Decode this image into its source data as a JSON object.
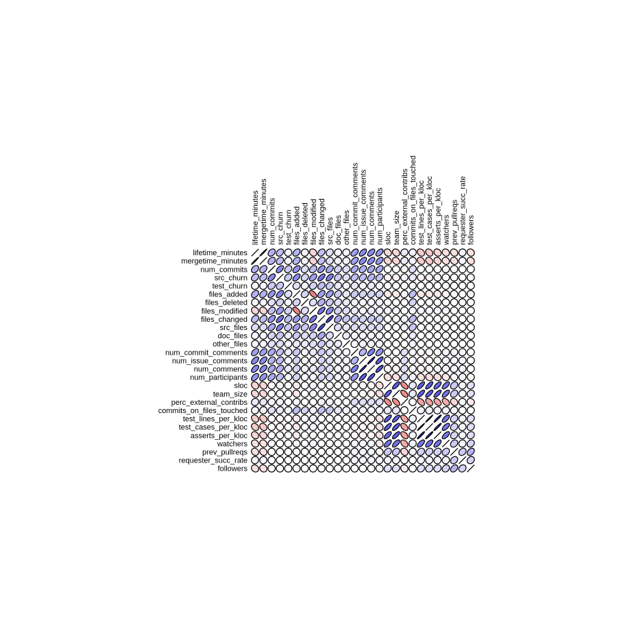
{
  "chart_data": {
    "type": "heatmap",
    "subtype": "correlation-ellipse-matrix",
    "title": "",
    "xlabel": "",
    "ylabel": "",
    "value_range": [
      -1,
      1
    ],
    "colors": {
      "positive": "#2a2ad8",
      "negative": "#e03030",
      "neutral": "#ffffff",
      "stroke": "#000000"
    },
    "variables": [
      "lifetime_minutes",
      "mergetime_minutes",
      "num_commits",
      "src_churn",
      "test_churn",
      "files_added",
      "files_deleted",
      "files_modified",
      "files_changed",
      "src_files",
      "doc_files",
      "other_files",
      "num_commit_comments",
      "num_issue_comments",
      "num_comments",
      "num_participants",
      "sloc",
      "team_size",
      "perc_external_contribs",
      "commits_on_files_touched",
      "test_lines_per_kloc",
      "test_cases_per_kloc",
      "asserts_per_kloc",
      "watchers",
      "prev_pullreqs",
      "requester_succ_rate",
      "followers"
    ],
    "matrix": [
      [
        1.0,
        0.98,
        0.35,
        0.3,
        0.05,
        0.35,
        0.05,
        -0.2,
        0.3,
        0.15,
        0.05,
        0.05,
        0.45,
        0.55,
        0.55,
        0.5,
        -0.2,
        -0.2,
        0.1,
        0.05,
        -0.25,
        -0.25,
        -0.2,
        -0.15,
        -0.15,
        0.05,
        -0.15
      ],
      [
        0.98,
        1.0,
        0.35,
        0.3,
        0.05,
        0.35,
        0.05,
        -0.2,
        0.3,
        0.15,
        0.05,
        0.05,
        0.45,
        0.55,
        0.55,
        0.5,
        -0.2,
        -0.2,
        0.1,
        0.05,
        -0.25,
        -0.25,
        -0.2,
        -0.15,
        -0.15,
        0.05,
        -0.15
      ],
      [
        0.35,
        0.35,
        1.0,
        0.55,
        0.25,
        0.5,
        0.15,
        0.3,
        0.5,
        0.4,
        0.2,
        0.15,
        0.4,
        0.35,
        0.4,
        0.4,
        0.0,
        0.0,
        0.05,
        0.15,
        0.0,
        0.0,
        0.0,
        0.05,
        0.0,
        0.0,
        0.0
      ],
      [
        0.3,
        0.3,
        0.55,
        1.0,
        0.25,
        0.55,
        0.2,
        0.45,
        0.65,
        0.6,
        0.25,
        0.15,
        0.3,
        0.3,
        0.35,
        0.3,
        -0.05,
        -0.05,
        0.05,
        0.1,
        -0.05,
        -0.05,
        -0.05,
        0.0,
        0.0,
        0.0,
        0.0
      ],
      [
        0.05,
        0.05,
        0.25,
        0.25,
        1.0,
        0.15,
        0.05,
        0.2,
        0.3,
        0.25,
        0.1,
        0.05,
        0.1,
        0.05,
        0.1,
        0.05,
        0.0,
        0.0,
        0.0,
        0.05,
        0.0,
        0.0,
        0.0,
        0.0,
        0.0,
        0.0,
        0.0
      ],
      [
        0.35,
        0.35,
        0.5,
        0.55,
        0.15,
        1.0,
        0.2,
        -0.6,
        0.45,
        0.45,
        0.25,
        0.1,
        0.25,
        0.2,
        0.2,
        0.2,
        -0.1,
        -0.1,
        0.05,
        0.3,
        -0.1,
        -0.1,
        -0.1,
        -0.05,
        -0.05,
        0.0,
        -0.05
      ],
      [
        0.05,
        0.05,
        0.15,
        0.2,
        0.05,
        0.2,
        1.0,
        0.15,
        0.35,
        0.25,
        0.15,
        0.1,
        0.05,
        0.05,
        0.05,
        0.05,
        0.0,
        0.0,
        0.0,
        0.2,
        0.0,
        0.0,
        0.0,
        0.0,
        0.0,
        0.0,
        0.0
      ],
      [
        -0.2,
        -0.2,
        0.3,
        0.45,
        0.2,
        -0.6,
        0.15,
        1.0,
        0.65,
        0.55,
        0.2,
        0.15,
        0.1,
        0.05,
        0.1,
        0.05,
        0.05,
        0.05,
        0.0,
        0.05,
        0.05,
        0.05,
        0.05,
        0.05,
        0.0,
        0.0,
        0.0
      ],
      [
        0.3,
        0.3,
        0.5,
        0.65,
        0.3,
        0.45,
        0.35,
        0.65,
        1.0,
        0.85,
        0.4,
        0.25,
        0.25,
        0.2,
        0.25,
        0.2,
        0.0,
        0.0,
        0.05,
        0.3,
        0.0,
        0.0,
        0.0,
        0.0,
        0.0,
        0.0,
        0.0
      ],
      [
        0.15,
        0.15,
        0.4,
        0.6,
        0.25,
        0.45,
        0.25,
        0.55,
        0.85,
        1.0,
        0.15,
        0.1,
        0.15,
        0.15,
        0.15,
        0.15,
        0.0,
        0.0,
        0.05,
        0.25,
        0.0,
        0.0,
        0.0,
        0.0,
        0.0,
        0.0,
        0.0
      ],
      [
        0.05,
        0.05,
        0.2,
        0.25,
        0.1,
        0.25,
        0.15,
        0.2,
        0.4,
        0.15,
        1.0,
        0.1,
        0.05,
        0.05,
        0.05,
        0.05,
        0.0,
        0.0,
        0.0,
        0.1,
        0.0,
        0.0,
        0.0,
        0.0,
        0.0,
        0.0,
        0.0
      ],
      [
        0.05,
        0.05,
        0.15,
        0.15,
        0.05,
        0.1,
        0.1,
        0.15,
        0.25,
        0.1,
        0.1,
        1.0,
        0.05,
        0.05,
        0.05,
        0.05,
        0.0,
        0.0,
        0.0,
        0.05,
        0.0,
        0.0,
        0.0,
        0.0,
        0.0,
        0.0,
        0.0
      ],
      [
        0.45,
        0.45,
        0.4,
        0.3,
        0.1,
        0.25,
        0.05,
        0.1,
        0.25,
        0.15,
        0.05,
        0.05,
        1.0,
        0.35,
        0.6,
        0.5,
        0.0,
        0.0,
        0.15,
        0.05,
        -0.05,
        -0.05,
        -0.05,
        0.05,
        0.05,
        0.05,
        0.0
      ],
      [
        0.55,
        0.55,
        0.35,
        0.3,
        0.05,
        0.2,
        0.05,
        0.05,
        0.2,
        0.15,
        0.05,
        0.05,
        0.35,
        1.0,
        0.95,
        0.75,
        -0.05,
        -0.05,
        0.15,
        0.05,
        -0.05,
        -0.05,
        -0.05,
        0.05,
        0.05,
        0.05,
        0.0
      ],
      [
        0.55,
        0.55,
        0.4,
        0.35,
        0.1,
        0.2,
        0.05,
        0.1,
        0.25,
        0.15,
        0.05,
        0.05,
        0.6,
        0.95,
        1.0,
        0.8,
        -0.05,
        -0.05,
        0.15,
        0.05,
        -0.05,
        -0.05,
        -0.05,
        0.05,
        0.05,
        0.05,
        0.0
      ],
      [
        0.5,
        0.5,
        0.4,
        0.3,
        0.05,
        0.2,
        0.05,
        0.05,
        0.2,
        0.15,
        0.05,
        0.05,
        0.5,
        0.75,
        0.8,
        1.0,
        -0.15,
        -0.15,
        0.15,
        0.05,
        -0.15,
        -0.15,
        -0.15,
        -0.1,
        -0.05,
        0.05,
        -0.05
      ],
      [
        -0.2,
        -0.2,
        0.0,
        -0.05,
        0.0,
        -0.1,
        0.0,
        0.05,
        0.0,
        0.0,
        0.0,
        0.0,
        0.0,
        -0.05,
        -0.05,
        -0.15,
        1.0,
        0.75,
        -0.55,
        0.1,
        0.75,
        0.75,
        0.7,
        0.65,
        0.25,
        0.05,
        0.15
      ],
      [
        -0.2,
        -0.2,
        0.0,
        -0.05,
        0.0,
        -0.1,
        0.0,
        0.05,
        0.0,
        0.0,
        0.0,
        0.0,
        0.0,
        -0.05,
        -0.05,
        -0.15,
        0.75,
        1.0,
        -0.55,
        0.1,
        0.75,
        0.75,
        0.75,
        0.65,
        0.25,
        0.05,
        0.15
      ],
      [
        0.1,
        0.1,
        0.05,
        0.05,
        0.0,
        0.05,
        0.0,
        0.0,
        0.05,
        0.05,
        0.0,
        0.0,
        0.15,
        0.15,
        0.15,
        0.15,
        -0.55,
        -0.55,
        1.0,
        0.0,
        -0.45,
        -0.45,
        -0.45,
        -0.4,
        -0.2,
        0.0,
        -0.1
      ],
      [
        0.05,
        0.05,
        0.15,
        0.1,
        0.05,
        0.3,
        0.2,
        0.05,
        0.3,
        0.25,
        0.1,
        0.05,
        0.05,
        0.05,
        0.05,
        0.05,
        0.1,
        0.1,
        0.0,
        1.0,
        0.05,
        0.05,
        0.05,
        0.05,
        0.05,
        0.0,
        0.0
      ],
      [
        -0.25,
        -0.25,
        0.0,
        -0.05,
        0.0,
        -0.1,
        0.0,
        0.05,
        0.0,
        0.0,
        0.0,
        0.0,
        -0.05,
        -0.05,
        -0.05,
        -0.15,
        0.75,
        0.75,
        -0.45,
        0.05,
        1.0,
        0.98,
        0.95,
        0.65,
        0.2,
        0.05,
        0.15
      ],
      [
        -0.25,
        -0.25,
        0.0,
        -0.05,
        0.0,
        -0.1,
        0.0,
        0.05,
        0.0,
        0.0,
        0.0,
        0.0,
        -0.05,
        -0.05,
        -0.05,
        -0.15,
        0.75,
        0.75,
        -0.45,
        0.05,
        0.98,
        1.0,
        0.95,
        0.65,
        0.2,
        0.05,
        0.15
      ],
      [
        -0.2,
        -0.2,
        0.0,
        -0.05,
        0.0,
        -0.1,
        0.0,
        0.05,
        0.0,
        0.0,
        0.0,
        0.0,
        -0.05,
        -0.05,
        -0.05,
        -0.15,
        0.7,
        0.75,
        -0.45,
        0.05,
        0.95,
        0.95,
        1.0,
        0.65,
        0.2,
        0.05,
        0.15
      ],
      [
        -0.15,
        -0.15,
        0.05,
        0.0,
        0.0,
        -0.05,
        0.0,
        0.05,
        0.0,
        0.0,
        0.0,
        0.0,
        0.05,
        0.05,
        0.05,
        -0.1,
        0.65,
        0.65,
        -0.4,
        0.05,
        0.65,
        0.65,
        0.65,
        1.0,
        0.25,
        0.05,
        0.2
      ],
      [
        -0.15,
        -0.15,
        0.0,
        0.0,
        0.0,
        -0.05,
        0.0,
        0.0,
        0.0,
        0.0,
        0.0,
        0.0,
        0.05,
        0.05,
        0.05,
        -0.05,
        0.25,
        0.25,
        -0.2,
        0.05,
        0.2,
        0.2,
        0.2,
        0.25,
        1.0,
        0.25,
        0.35
      ],
      [
        0.05,
        0.05,
        0.0,
        0.0,
        0.0,
        0.0,
        0.0,
        0.0,
        0.0,
        0.0,
        0.0,
        0.0,
        0.05,
        0.05,
        0.05,
        0.05,
        0.05,
        0.05,
        0.0,
        0.0,
        0.05,
        0.05,
        0.05,
        0.05,
        0.25,
        1.0,
        0.2
      ],
      [
        -0.15,
        -0.15,
        0.0,
        0.0,
        0.0,
        -0.05,
        0.0,
        0.0,
        0.0,
        0.0,
        0.0,
        0.0,
        0.0,
        0.0,
        0.0,
        -0.05,
        0.15,
        0.15,
        -0.1,
        0.0,
        0.15,
        0.15,
        0.15,
        0.2,
        0.35,
        0.2,
        1.0
      ]
    ]
  }
}
